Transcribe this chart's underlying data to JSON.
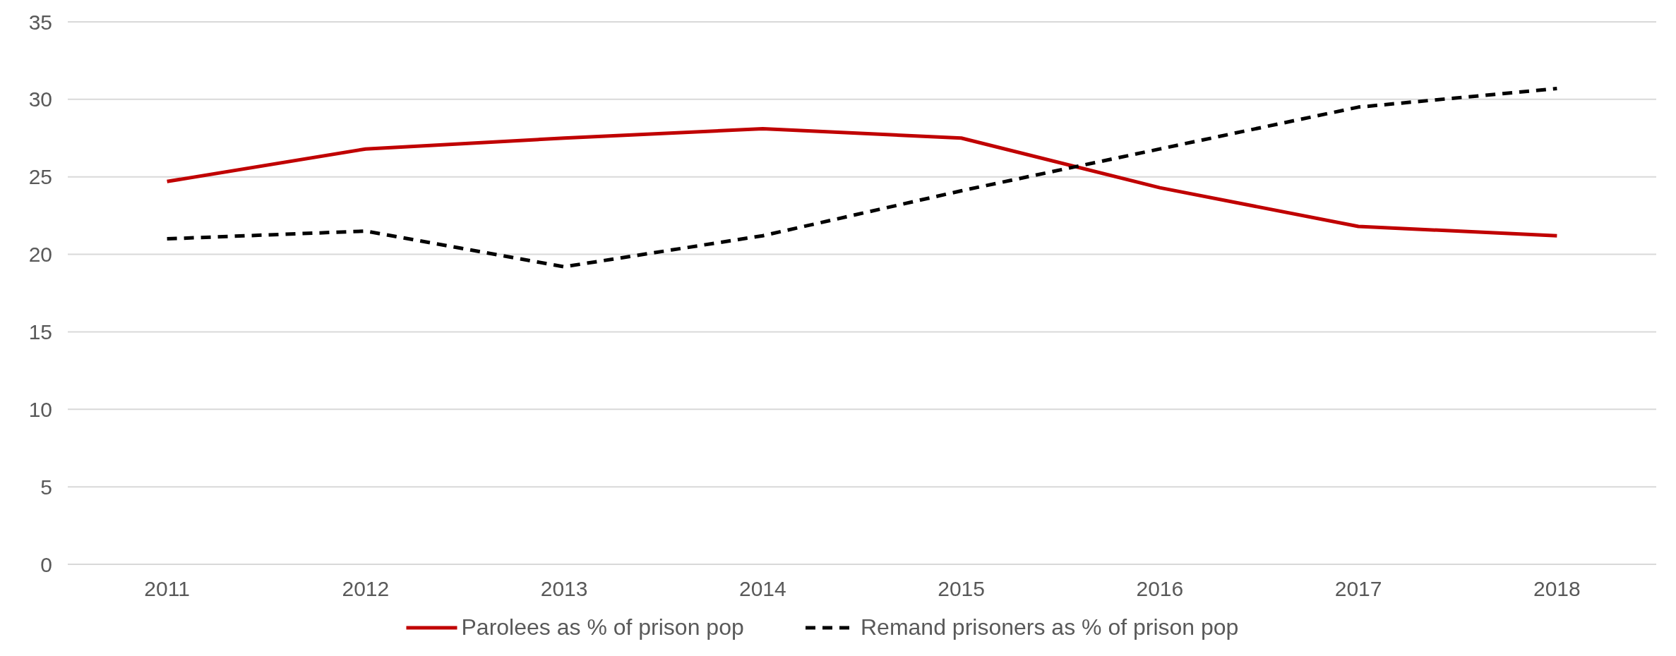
{
  "chart_data": {
    "type": "line",
    "categories": [
      "2011",
      "2012",
      "2013",
      "2014",
      "2015",
      "2016",
      "2017",
      "2018"
    ],
    "series": [
      {
        "name": "Parolees as % of prison pop",
        "color": "#c00000",
        "line_style": "solid",
        "values": [
          24.7,
          26.8,
          27.5,
          28.1,
          27.5,
          24.3,
          21.8,
          21.2
        ]
      },
      {
        "name": "Remand prisoners as % of prison pop",
        "color": "#000000",
        "line_style": "dashed",
        "values": [
          21.0,
          21.5,
          19.2,
          21.2,
          24.1,
          26.8,
          29.5,
          30.7
        ]
      }
    ],
    "ylim": [
      0,
      35
    ],
    "yticks": [
      0,
      5,
      10,
      15,
      20,
      25,
      30,
      35
    ],
    "grid": "y",
    "legend": "bottom",
    "marker": "none"
  }
}
